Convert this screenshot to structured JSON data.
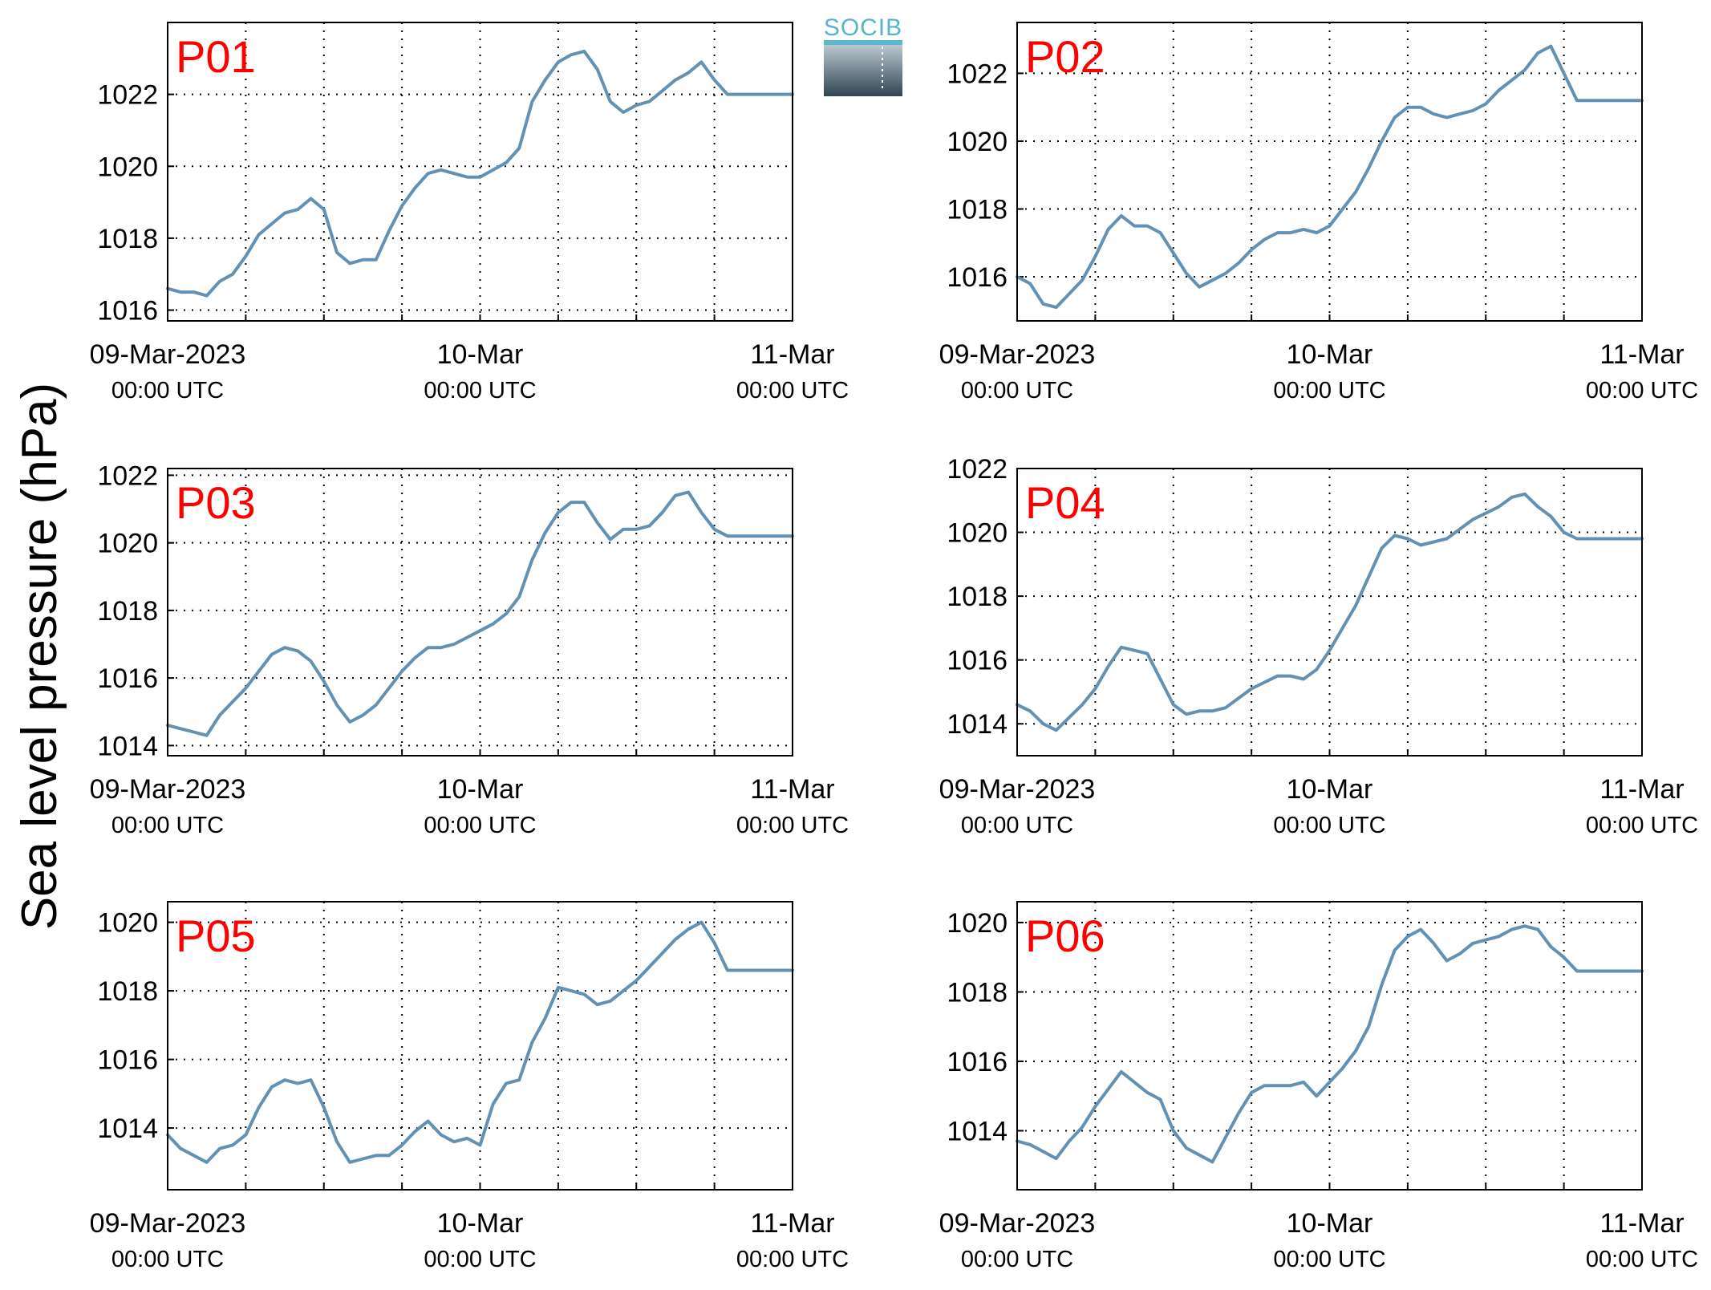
{
  "figure": {
    "ylabel": "Sea level pressure (hPa)",
    "logo_text": "SOCIB",
    "line_color": "#6391b4",
    "title_color": "#ff0000"
  },
  "chart_data": [
    {
      "type": "line",
      "title": "P01",
      "xlim": [
        0,
        48
      ],
      "ylim": [
        1015.7,
        1024.0
      ],
      "yticks": [
        1016,
        1018,
        1020,
        1022
      ],
      "xticks": [
        {
          "x": 0,
          "line1": "09-Mar-2023",
          "line2": "00:00 UTC"
        },
        {
          "x": 24,
          "line1": "10-Mar",
          "line2": "00:00 UTC"
        },
        {
          "x": 48,
          "line1": "11-Mar",
          "line2": "00:00 UTC"
        }
      ],
      "grid": true,
      "x": [
        0,
        1,
        2,
        3,
        4,
        5,
        6,
        7,
        8,
        9,
        10,
        11,
        12,
        13,
        14,
        15,
        16,
        17,
        18,
        19,
        20,
        21,
        22,
        23,
        24,
        25,
        26,
        27,
        28,
        29,
        30,
        31,
        32,
        33,
        34,
        35,
        36,
        37,
        38,
        39,
        40,
        41,
        42,
        43,
        44,
        45,
        46,
        47,
        48
      ],
      "y": [
        1016.6,
        1016.5,
        1016.5,
        1016.4,
        1016.8,
        1017.0,
        1017.5,
        1018.1,
        1018.4,
        1018.7,
        1018.8,
        1019.1,
        1018.8,
        1017.6,
        1017.3,
        1017.4,
        1017.4,
        1018.2,
        1018.9,
        1019.4,
        1019.8,
        1019.9,
        1019.8,
        1019.7,
        1019.7,
        1019.9,
        1020.1,
        1020.5,
        1021.8,
        1022.4,
        1022.9,
        1023.1,
        1023.2,
        1022.7,
        1021.8,
        1021.5,
        1021.7,
        1021.8,
        1022.1,
        1022.4,
        1022.6,
        1022.9,
        1022.4,
        1022.0,
        1022.0,
        1022.0,
        1022.0,
        1022.0,
        1022.0
      ]
    },
    {
      "type": "line",
      "title": "P02",
      "xlim": [
        0,
        48
      ],
      "ylim": [
        1014.7,
        1023.5
      ],
      "yticks": [
        1016,
        1018,
        1020,
        1022
      ],
      "xticks": [
        {
          "x": 0,
          "line1": "09-Mar-2023",
          "line2": "00:00 UTC"
        },
        {
          "x": 24,
          "line1": "10-Mar",
          "line2": "00:00 UTC"
        },
        {
          "x": 48,
          "line1": "11-Mar",
          "line2": "00:00 UTC"
        }
      ],
      "grid": true,
      "x": [
        0,
        1,
        2,
        3,
        4,
        5,
        6,
        7,
        8,
        9,
        10,
        11,
        12,
        13,
        14,
        15,
        16,
        17,
        18,
        19,
        20,
        21,
        22,
        23,
        24,
        25,
        26,
        27,
        28,
        29,
        30,
        31,
        32,
        33,
        34,
        35,
        36,
        37,
        38,
        39,
        40,
        41,
        42,
        43,
        44,
        45,
        46,
        47,
        48
      ],
      "y": [
        1016.0,
        1015.8,
        1015.2,
        1015.1,
        1015.5,
        1015.9,
        1016.6,
        1017.4,
        1017.8,
        1017.5,
        1017.5,
        1017.3,
        1016.7,
        1016.1,
        1015.7,
        1015.9,
        1016.1,
        1016.4,
        1016.8,
        1017.1,
        1017.3,
        1017.3,
        1017.4,
        1017.3,
        1017.5,
        1018.0,
        1018.5,
        1019.2,
        1020.0,
        1020.7,
        1021.0,
        1021.0,
        1020.8,
        1020.7,
        1020.8,
        1020.9,
        1021.1,
        1021.5,
        1021.8,
        1022.1,
        1022.6,
        1022.8,
        1022.0,
        1021.2,
        1021.2,
        1021.2,
        1021.2,
        1021.2,
        1021.2
      ]
    },
    {
      "type": "line",
      "title": "P03",
      "xlim": [
        0,
        48
      ],
      "ylim": [
        1013.7,
        1022.2
      ],
      "yticks": [
        1014,
        1016,
        1018,
        1020,
        1022
      ],
      "xticks": [
        {
          "x": 0,
          "line1": "09-Mar-2023",
          "line2": "00:00 UTC"
        },
        {
          "x": 24,
          "line1": "10-Mar",
          "line2": "00:00 UTC"
        },
        {
          "x": 48,
          "line1": "11-Mar",
          "line2": "00:00 UTC"
        }
      ],
      "grid": true,
      "x": [
        0,
        1,
        2,
        3,
        4,
        5,
        6,
        7,
        8,
        9,
        10,
        11,
        12,
        13,
        14,
        15,
        16,
        17,
        18,
        19,
        20,
        21,
        22,
        23,
        24,
        25,
        26,
        27,
        28,
        29,
        30,
        31,
        32,
        33,
        34,
        35,
        36,
        37,
        38,
        39,
        40,
        41,
        42,
        43,
        44,
        45,
        46,
        47,
        48
      ],
      "y": [
        1014.6,
        1014.5,
        1014.4,
        1014.3,
        1014.9,
        1015.3,
        1015.7,
        1016.2,
        1016.7,
        1016.9,
        1016.8,
        1016.5,
        1015.9,
        1015.2,
        1014.7,
        1014.9,
        1015.2,
        1015.7,
        1016.2,
        1016.6,
        1016.9,
        1016.9,
        1017.0,
        1017.2,
        1017.4,
        1017.6,
        1017.9,
        1018.4,
        1019.5,
        1020.3,
        1020.9,
        1021.2,
        1021.2,
        1020.6,
        1020.1,
        1020.4,
        1020.4,
        1020.5,
        1020.9,
        1021.4,
        1021.5,
        1020.9,
        1020.4,
        1020.2,
        1020.2,
        1020.2,
        1020.2,
        1020.2,
        1020.2
      ]
    },
    {
      "type": "line",
      "title": "P04",
      "xlim": [
        0,
        48
      ],
      "ylim": [
        1013.0,
        1022.0
      ],
      "yticks": [
        1014,
        1016,
        1018,
        1020,
        1022
      ],
      "xticks": [
        {
          "x": 0,
          "line1": "09-Mar-2023",
          "line2": "00:00 UTC"
        },
        {
          "x": 24,
          "line1": "10-Mar",
          "line2": "00:00 UTC"
        },
        {
          "x": 48,
          "line1": "11-Mar",
          "line2": "00:00 UTC"
        }
      ],
      "grid": true,
      "x": [
        0,
        1,
        2,
        3,
        4,
        5,
        6,
        7,
        8,
        9,
        10,
        11,
        12,
        13,
        14,
        15,
        16,
        17,
        18,
        19,
        20,
        21,
        22,
        23,
        24,
        25,
        26,
        27,
        28,
        29,
        30,
        31,
        32,
        33,
        34,
        35,
        36,
        37,
        38,
        39,
        40,
        41,
        42,
        43,
        44,
        45,
        46,
        47,
        48
      ],
      "y": [
        1014.6,
        1014.4,
        1014.0,
        1013.8,
        1014.2,
        1014.6,
        1015.1,
        1015.8,
        1016.4,
        1016.3,
        1016.2,
        1015.4,
        1014.6,
        1014.3,
        1014.4,
        1014.4,
        1014.5,
        1014.8,
        1015.1,
        1015.3,
        1015.5,
        1015.5,
        1015.4,
        1015.7,
        1016.3,
        1017.0,
        1017.7,
        1018.6,
        1019.5,
        1019.9,
        1019.8,
        1019.6,
        1019.7,
        1019.8,
        1020.1,
        1020.4,
        1020.6,
        1020.8,
        1021.1,
        1021.2,
        1020.8,
        1020.5,
        1020.0,
        1019.8,
        1019.8,
        1019.8,
        1019.8,
        1019.8,
        1019.8
      ]
    },
    {
      "type": "line",
      "title": "P05",
      "xlim": [
        0,
        48
      ],
      "ylim": [
        1012.2,
        1020.6
      ],
      "yticks": [
        1014,
        1016,
        1018,
        1020
      ],
      "xticks": [
        {
          "x": 0,
          "line1": "09-Mar-2023",
          "line2": "00:00 UTC"
        },
        {
          "x": 24,
          "line1": "10-Mar",
          "line2": "00:00 UTC"
        },
        {
          "x": 48,
          "line1": "11-Mar",
          "line2": "00:00 UTC"
        }
      ],
      "grid": true,
      "x": [
        0,
        1,
        2,
        3,
        4,
        5,
        6,
        7,
        8,
        9,
        10,
        11,
        12,
        13,
        14,
        15,
        16,
        17,
        18,
        19,
        20,
        21,
        22,
        23,
        24,
        25,
        26,
        27,
        28,
        29,
        30,
        31,
        32,
        33,
        34,
        35,
        36,
        37,
        38,
        39,
        40,
        41,
        42,
        43,
        44,
        45,
        46,
        47,
        48
      ],
      "y": [
        1013.8,
        1013.4,
        1013.2,
        1013.0,
        1013.4,
        1013.5,
        1013.8,
        1014.6,
        1015.2,
        1015.4,
        1015.3,
        1015.4,
        1014.6,
        1013.6,
        1013.0,
        1013.1,
        1013.2,
        1013.2,
        1013.5,
        1013.9,
        1014.2,
        1013.8,
        1013.6,
        1013.7,
        1013.5,
        1014.7,
        1015.3,
        1015.4,
        1016.5,
        1017.2,
        1018.1,
        1018.0,
        1017.9,
        1017.6,
        1017.7,
        1018.0,
        1018.3,
        1018.7,
        1019.1,
        1019.5,
        1019.8,
        1020.0,
        1019.4,
        1018.6,
        1018.6,
        1018.6,
        1018.6,
        1018.6,
        1018.6
      ]
    },
    {
      "type": "line",
      "title": "P06",
      "xlim": [
        0,
        48
      ],
      "ylim": [
        1012.3,
        1020.6
      ],
      "yticks": [
        1014,
        1016,
        1018,
        1020
      ],
      "xticks": [
        {
          "x": 0,
          "line1": "09-Mar-2023",
          "line2": "00:00 UTC"
        },
        {
          "x": 24,
          "line1": "10-Mar",
          "line2": "00:00 UTC"
        },
        {
          "x": 48,
          "line1": "11-Mar",
          "line2": "00:00 UTC"
        }
      ],
      "grid": true,
      "x": [
        0,
        1,
        2,
        3,
        4,
        5,
        6,
        7,
        8,
        9,
        10,
        11,
        12,
        13,
        14,
        15,
        16,
        17,
        18,
        19,
        20,
        21,
        22,
        23,
        24,
        25,
        26,
        27,
        28,
        29,
        30,
        31,
        32,
        33,
        34,
        35,
        36,
        37,
        38,
        39,
        40,
        41,
        42,
        43,
        44,
        45,
        46,
        47,
        48
      ],
      "y": [
        1013.7,
        1013.6,
        1013.4,
        1013.2,
        1013.7,
        1014.1,
        1014.7,
        1015.2,
        1015.7,
        1015.4,
        1015.1,
        1014.9,
        1014.0,
        1013.5,
        1013.3,
        1013.1,
        1013.8,
        1014.5,
        1015.1,
        1015.3,
        1015.3,
        1015.3,
        1015.4,
        1015.0,
        1015.4,
        1015.8,
        1016.3,
        1017.0,
        1018.2,
        1019.2,
        1019.6,
        1019.8,
        1019.4,
        1018.9,
        1019.1,
        1019.4,
        1019.5,
        1019.6,
        1019.8,
        1019.9,
        1019.8,
        1019.3,
        1019.0,
        1018.6,
        1018.6,
        1018.6,
        1018.6,
        1018.6,
        1018.6
      ]
    }
  ]
}
